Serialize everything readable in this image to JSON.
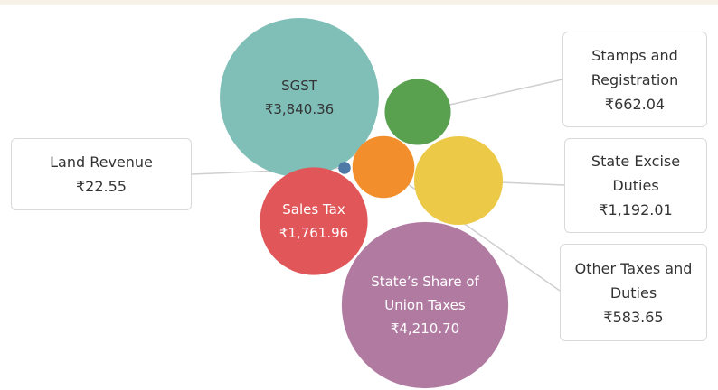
{
  "chart_data": {
    "type": "bubble",
    "categories": [
      "SGST",
      "Stamps and Registration",
      "Land Revenue",
      "State Excise Duties",
      "Sales Tax",
      "Other Taxes and Duties",
      "State’s Share of Union Taxes"
    ],
    "values": [
      3840.36,
      662.04,
      22.55,
      1192.01,
      1761.96,
      583.65,
      4210.7
    ],
    "value_labels": [
      "₹3,840.36",
      "₹662.04",
      "₹22.55",
      "₹1,192.01",
      "₹1,761.96",
      "₹583.65",
      "₹4,210.70"
    ],
    "colors": [
      "#7fbfb8",
      "#59a14f",
      "#4e79a7",
      "#edc948",
      "#e15759",
      "#f28e2b",
      "#b07aa1"
    ]
  }
}
